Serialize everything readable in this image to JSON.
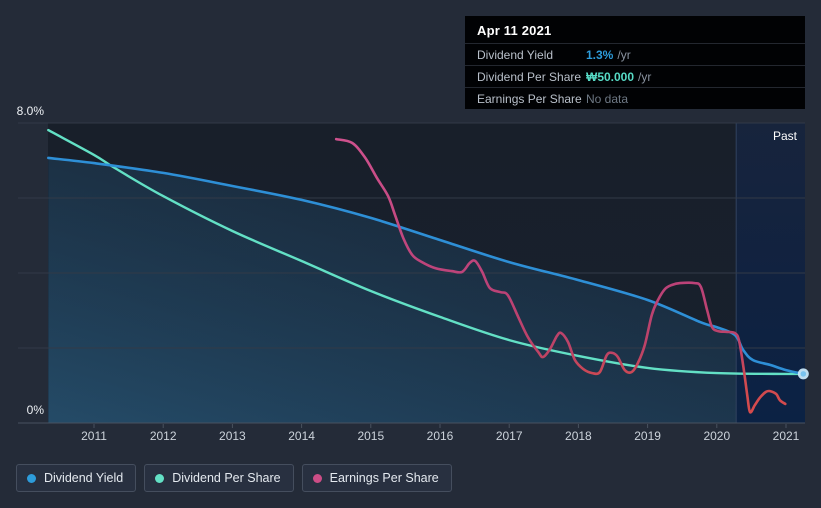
{
  "tooltip": {
    "date": "Apr 11 2021",
    "rows": [
      {
        "label": "Dividend Yield",
        "value": "1.3%",
        "suffix": "/yr",
        "color": "#2d9cdb"
      },
      {
        "label": "Dividend Per Share",
        "value": "₩50.000",
        "suffix": "/yr",
        "color": "#57dbc6"
      },
      {
        "label": "Earnings Per Share",
        "value": "No data",
        "suffix": "",
        "color": "#6e7884"
      }
    ]
  },
  "y_axis": {
    "top_label": "8.0%",
    "bottom_label": "0%"
  },
  "past_label": "Past",
  "legend": {
    "position": "bottom-left",
    "items": [
      {
        "label": "Dividend Yield",
        "color": "#2d9cdb"
      },
      {
        "label": "Dividend Per Share",
        "color": "#63e0c5"
      },
      {
        "label": "Earnings Per Share",
        "color": "#cc4d86"
      }
    ]
  },
  "colors": {
    "page_bg": "#242b38",
    "plot_bg": "#182029",
    "blue": "#2e8fd6",
    "teal": "#63e0c5",
    "pink": "#c2457d",
    "red": "#d64b4b",
    "tooltip_bg": "#010204",
    "gridline": "#323a47",
    "axis_line": "#49525f"
  },
  "chart_data": {
    "type": "line",
    "title": "",
    "xlabel": "",
    "ylabel": "",
    "y_unit": "%",
    "x_axis": {
      "min": 2010.33,
      "max": 2021.27,
      "ticks": [
        2011,
        2012,
        2013,
        2014,
        2015,
        2016,
        2017,
        2018,
        2019,
        2020,
        2021
      ]
    },
    "y_axis": {
      "min": 0,
      "max": 8,
      "gridline_step": 2,
      "labeled_ticks": [
        "8.0%",
        "0%"
      ]
    },
    "grid": "horizontal-only",
    "past_region_start": 2020.28,
    "legend_position": "bottom-left",
    "series": [
      {
        "name": "Dividend Yield",
        "color": "#2e8fd6",
        "area_fill": true,
        "end_marker": true,
        "points": [
          [
            2010.34,
            7.07
          ],
          [
            2011.0,
            6.93
          ],
          [
            2012.0,
            6.67
          ],
          [
            2013.0,
            6.32
          ],
          [
            2014.0,
            5.95
          ],
          [
            2015.0,
            5.47
          ],
          [
            2016.0,
            4.88
          ],
          [
            2017.0,
            4.29
          ],
          [
            2018.0,
            3.81
          ],
          [
            2019.0,
            3.28
          ],
          [
            2019.76,
            2.69
          ],
          [
            2019.99,
            2.56
          ],
          [
            2020.26,
            2.35
          ],
          [
            2020.38,
            1.95
          ],
          [
            2020.52,
            1.68
          ],
          [
            2020.77,
            1.55
          ],
          [
            2021.0,
            1.41
          ],
          [
            2021.25,
            1.31
          ]
        ]
      },
      {
        "name": "Dividend Per Share",
        "color": "#63e0c5",
        "area_fill": false,
        "end_marker": false,
        "points": [
          [
            2010.34,
            7.81
          ],
          [
            2011.0,
            7.15
          ],
          [
            2011.3,
            6.8
          ],
          [
            2012.0,
            6.05
          ],
          [
            2013.0,
            5.12
          ],
          [
            2014.0,
            4.32
          ],
          [
            2015.0,
            3.52
          ],
          [
            2016.0,
            2.83
          ],
          [
            2017.0,
            2.21
          ],
          [
            2018.0,
            1.79
          ],
          [
            2019.0,
            1.47
          ],
          [
            2020.0,
            1.33
          ],
          [
            2021.0,
            1.31
          ],
          [
            2021.25,
            1.31
          ]
        ]
      },
      {
        "name": "Earnings Per Share",
        "color": "#c2457d",
        "color_low_values": "#d64b4b",
        "area_fill": false,
        "end_marker": false,
        "points": [
          [
            2014.5,
            7.57
          ],
          [
            2014.73,
            7.47
          ],
          [
            2014.92,
            7.07
          ],
          [
            2015.09,
            6.53
          ],
          [
            2015.25,
            6.05
          ],
          [
            2015.35,
            5.55
          ],
          [
            2015.47,
            4.93
          ],
          [
            2015.6,
            4.48
          ],
          [
            2015.74,
            4.29
          ],
          [
            2015.93,
            4.13
          ],
          [
            2016.17,
            4.05
          ],
          [
            2016.32,
            4.03
          ],
          [
            2016.43,
            4.27
          ],
          [
            2016.51,
            4.32
          ],
          [
            2016.61,
            4.03
          ],
          [
            2016.72,
            3.6
          ],
          [
            2016.87,
            3.49
          ],
          [
            2016.98,
            3.41
          ],
          [
            2017.13,
            2.83
          ],
          [
            2017.27,
            2.29
          ],
          [
            2017.42,
            1.89
          ],
          [
            2017.49,
            1.76
          ],
          [
            2017.59,
            1.97
          ],
          [
            2017.69,
            2.32
          ],
          [
            2017.75,
            2.4
          ],
          [
            2017.85,
            2.16
          ],
          [
            2017.95,
            1.68
          ],
          [
            2018.07,
            1.44
          ],
          [
            2018.2,
            1.33
          ],
          [
            2018.31,
            1.36
          ],
          [
            2018.41,
            1.81
          ],
          [
            2018.49,
            1.87
          ],
          [
            2018.57,
            1.76
          ],
          [
            2018.67,
            1.41
          ],
          [
            2018.77,
            1.36
          ],
          [
            2018.86,
            1.6
          ],
          [
            2018.96,
            2.08
          ],
          [
            2019.06,
            2.88
          ],
          [
            2019.15,
            3.28
          ],
          [
            2019.25,
            3.57
          ],
          [
            2019.35,
            3.68
          ],
          [
            2019.47,
            3.73
          ],
          [
            2019.68,
            3.73
          ],
          [
            2019.77,
            3.63
          ],
          [
            2019.86,
            3.01
          ],
          [
            2019.93,
            2.56
          ],
          [
            2020.02,
            2.45
          ],
          [
            2020.15,
            2.43
          ],
          [
            2020.26,
            2.4
          ],
          [
            2020.32,
            2.21
          ],
          [
            2020.38,
            1.55
          ],
          [
            2020.44,
            0.75
          ],
          [
            2020.48,
            0.29
          ],
          [
            2020.55,
            0.48
          ],
          [
            2020.62,
            0.67
          ],
          [
            2020.71,
            0.83
          ],
          [
            2020.77,
            0.85
          ],
          [
            2020.86,
            0.77
          ],
          [
            2020.91,
            0.61
          ],
          [
            2020.99,
            0.51
          ]
        ]
      }
    ]
  }
}
